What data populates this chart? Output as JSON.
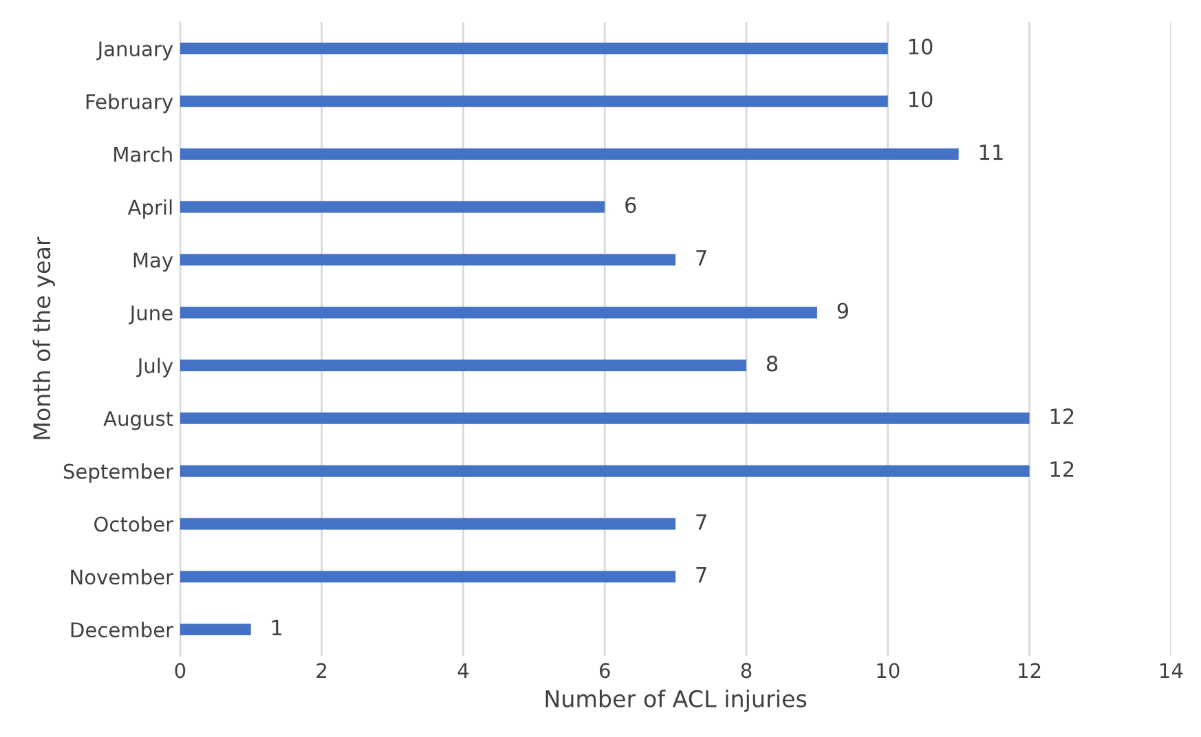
{
  "chart_data": {
    "type": "bar",
    "orientation": "horizontal",
    "categories": [
      "January",
      "February",
      "March",
      "April",
      "May",
      "June",
      "July",
      "August",
      "September",
      "October",
      "November",
      "December"
    ],
    "values": [
      10,
      10,
      11,
      6,
      7,
      9,
      8,
      12,
      12,
      7,
      7,
      1
    ],
    "color": "#4472c4",
    "xlabel": "Number of ACL injuries",
    "ylabel": "Month of the year",
    "xlim": [
      0,
      14
    ],
    "xticks": [
      0,
      2,
      4,
      6,
      8,
      10,
      12,
      14
    ],
    "grid": "x",
    "data_labels": true
  }
}
